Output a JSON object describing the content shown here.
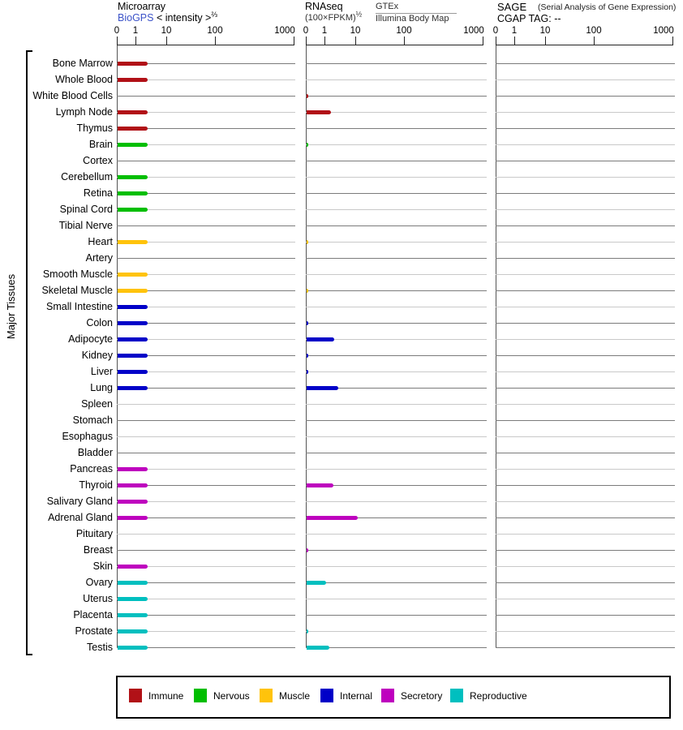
{
  "left_axis": {
    "label": "Major Tissues"
  },
  "panels": {
    "microarray": {
      "title": "Microarray",
      "link_label": "BioGPS",
      "axis_label": "< intensity >",
      "axis_exponent": "⅔"
    },
    "rnaseq": {
      "title": "RNAseq",
      "unit": "(100×FPKM)",
      "unit_exponent": "½",
      "source_primary": "GTEx",
      "source_secondary": "Illumina Body Map"
    },
    "sage": {
      "title": "SAGE",
      "title_note": "(Serial Analysis of Gene Expression)",
      "cgap_label": "CGAP",
      "tag_label": "TAG:",
      "tag_value": "--"
    }
  },
  "legend": {
    "items": [
      {
        "id": "immune",
        "label": "Immune",
        "color": "#B11117"
      },
      {
        "id": "nervous",
        "label": "Nervous",
        "color": "#00BE00"
      },
      {
        "id": "muscle",
        "label": "Muscle",
        "color": "#FFC30B"
      },
      {
        "id": "internal",
        "label": "Internal",
        "color": "#0000C8"
      },
      {
        "id": "secretory",
        "label": "Secretory",
        "color": "#BE00BE"
      },
      {
        "id": "reproductive",
        "label": "Reproductive",
        "color": "#00BFBF"
      }
    ]
  },
  "colors": {
    "link_blue": "#3B52C8",
    "row_line_dark": "#7B7B7B",
    "row_line_light": "#C9C9C9"
  },
  "chart_data": {
    "type": "bar",
    "orientation": "horizontal",
    "title": "Tissue expression: Microarray / RNAseq / SAGE",
    "x_ticks": [
      0,
      1,
      10,
      100,
      1000
    ],
    "x_scale": "power-compressed, ticks 0,1,10,100,1000 (Microarray axis = intensity^(2/3); RNAseq axis = (100×FPKM)^(1/2))",
    "panels": [
      "Microarray (BioGPS)",
      "RNAseq (GTEx / Illumina Body Map)",
      "SAGE (CGAP TAG: --)"
    ],
    "legend_position": "bottom",
    "grid": "horizontal row lines, alternating dark/light gray",
    "categories": [
      "Bone Marrow",
      "Whole Blood",
      "White Blood Cells",
      "Lymph Node",
      "Thymus",
      "Brain",
      "Cortex",
      "Cerebellum",
      "Retina",
      "Spinal Cord",
      "Tibial Nerve",
      "Heart",
      "Artery",
      "Smooth Muscle",
      "Skeletal Muscle",
      "Small Intestine",
      "Colon",
      "Adipocyte",
      "Kidney",
      "Liver",
      "Lung",
      "Spleen",
      "Stomach",
      "Esophagus",
      "Bladder",
      "Pancreas",
      "Thyroid",
      "Salivary Gland",
      "Adrenal Gland",
      "Pituitary",
      "Breast",
      "Skin",
      "Ovary",
      "Uterus",
      "Placenta",
      "Prostate",
      "Testis"
    ],
    "tissue_groups": [
      "immune",
      "immune",
      "immune",
      "immune",
      "immune",
      "nervous",
      "nervous",
      "nervous",
      "nervous",
      "nervous",
      "nervous",
      "muscle",
      "muscle",
      "muscle",
      "muscle",
      "internal",
      "internal",
      "internal",
      "internal",
      "internal",
      "internal",
      "internal",
      "internal",
      "internal",
      "internal",
      "secretory",
      "secretory",
      "secretory",
      "secretory",
      "secretory",
      "secretory",
      "secretory",
      "reproductive",
      "reproductive",
      "reproductive",
      "reproductive",
      "reproductive"
    ],
    "group_colors": {
      "immune": "#B11117",
      "nervous": "#00BE00",
      "muscle": "#FFC30B",
      "internal": "#0000C8",
      "secretory": "#BE00BE",
      "reproductive": "#00BFBF"
    },
    "series": [
      {
        "name": "Microarray",
        "values": [
          2.3,
          2.3,
          0,
          2.3,
          2.3,
          2.3,
          0,
          2.3,
          2.3,
          2.3,
          0,
          2.3,
          0,
          2.3,
          2.3,
          2.3,
          2.3,
          2.3,
          2.3,
          2.3,
          2.3,
          0,
          0,
          0,
          0,
          2.3,
          2.3,
          2.3,
          2.3,
          0,
          0,
          2.3,
          2.3,
          2.3,
          2.3,
          2.3,
          2.3
        ]
      },
      {
        "name": "RNAseq",
        "values": [
          0,
          0,
          0.09,
          1.53,
          0,
          0.09,
          0,
          0,
          0,
          0,
          0,
          0.09,
          0,
          0,
          0.09,
          0,
          0.09,
          1.95,
          0.09,
          0.09,
          2.63,
          0,
          0,
          0,
          0,
          0,
          1.84,
          0,
          10.8,
          0,
          0.09,
          0,
          1.06,
          0,
          0,
          0.09,
          1.35
        ]
      },
      {
        "name": "SAGE",
        "values": [
          0,
          0,
          0,
          0,
          0,
          0,
          0,
          0,
          0,
          0,
          0,
          0,
          0,
          0,
          0,
          0,
          0,
          0,
          0,
          0,
          0,
          0,
          0,
          0,
          0,
          0,
          0,
          0,
          0,
          0,
          0,
          0,
          0,
          0,
          0,
          0,
          0
        ]
      }
    ]
  }
}
